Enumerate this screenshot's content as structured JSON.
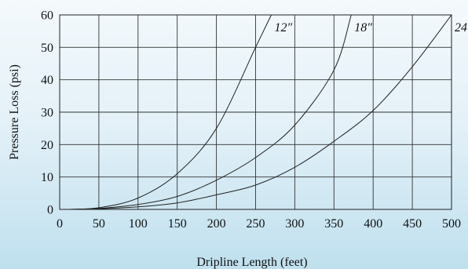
{
  "chart_data": {
    "type": "line",
    "title": "",
    "xlabel": "Dripline Length (feet)",
    "ylabel": "Pressure Loss (psi)",
    "xlim": [
      0,
      500
    ],
    "ylim": [
      0,
      60
    ],
    "x_ticks": [
      "0",
      "50",
      "100",
      "150",
      "200",
      "250",
      "300",
      "350",
      "400",
      "450",
      "500"
    ],
    "y_ticks": [
      "0",
      "10",
      "20",
      "30",
      "40",
      "50",
      "60"
    ],
    "grid": true,
    "series": [
      {
        "name": "12″",
        "x": [
          10,
          50,
          100,
          150,
          200,
          250,
          270
        ],
        "y": [
          0,
          0.5,
          3.5,
          11,
          25,
          50,
          60
        ]
      },
      {
        "name": "18″",
        "x": [
          10,
          50,
          100,
          150,
          200,
          250,
          300,
          350,
          372
        ],
        "y": [
          0,
          0.3,
          1.5,
          4,
          9,
          16,
          26,
          43,
          60
        ]
      },
      {
        "name": "24″",
        "x": [
          10,
          50,
          100,
          150,
          200,
          250,
          300,
          350,
          400,
          450,
          500
        ],
        "y": [
          0,
          0.2,
          0.8,
          2,
          4.5,
          7.5,
          13,
          21,
          30.5,
          44,
          60
        ]
      }
    ]
  }
}
